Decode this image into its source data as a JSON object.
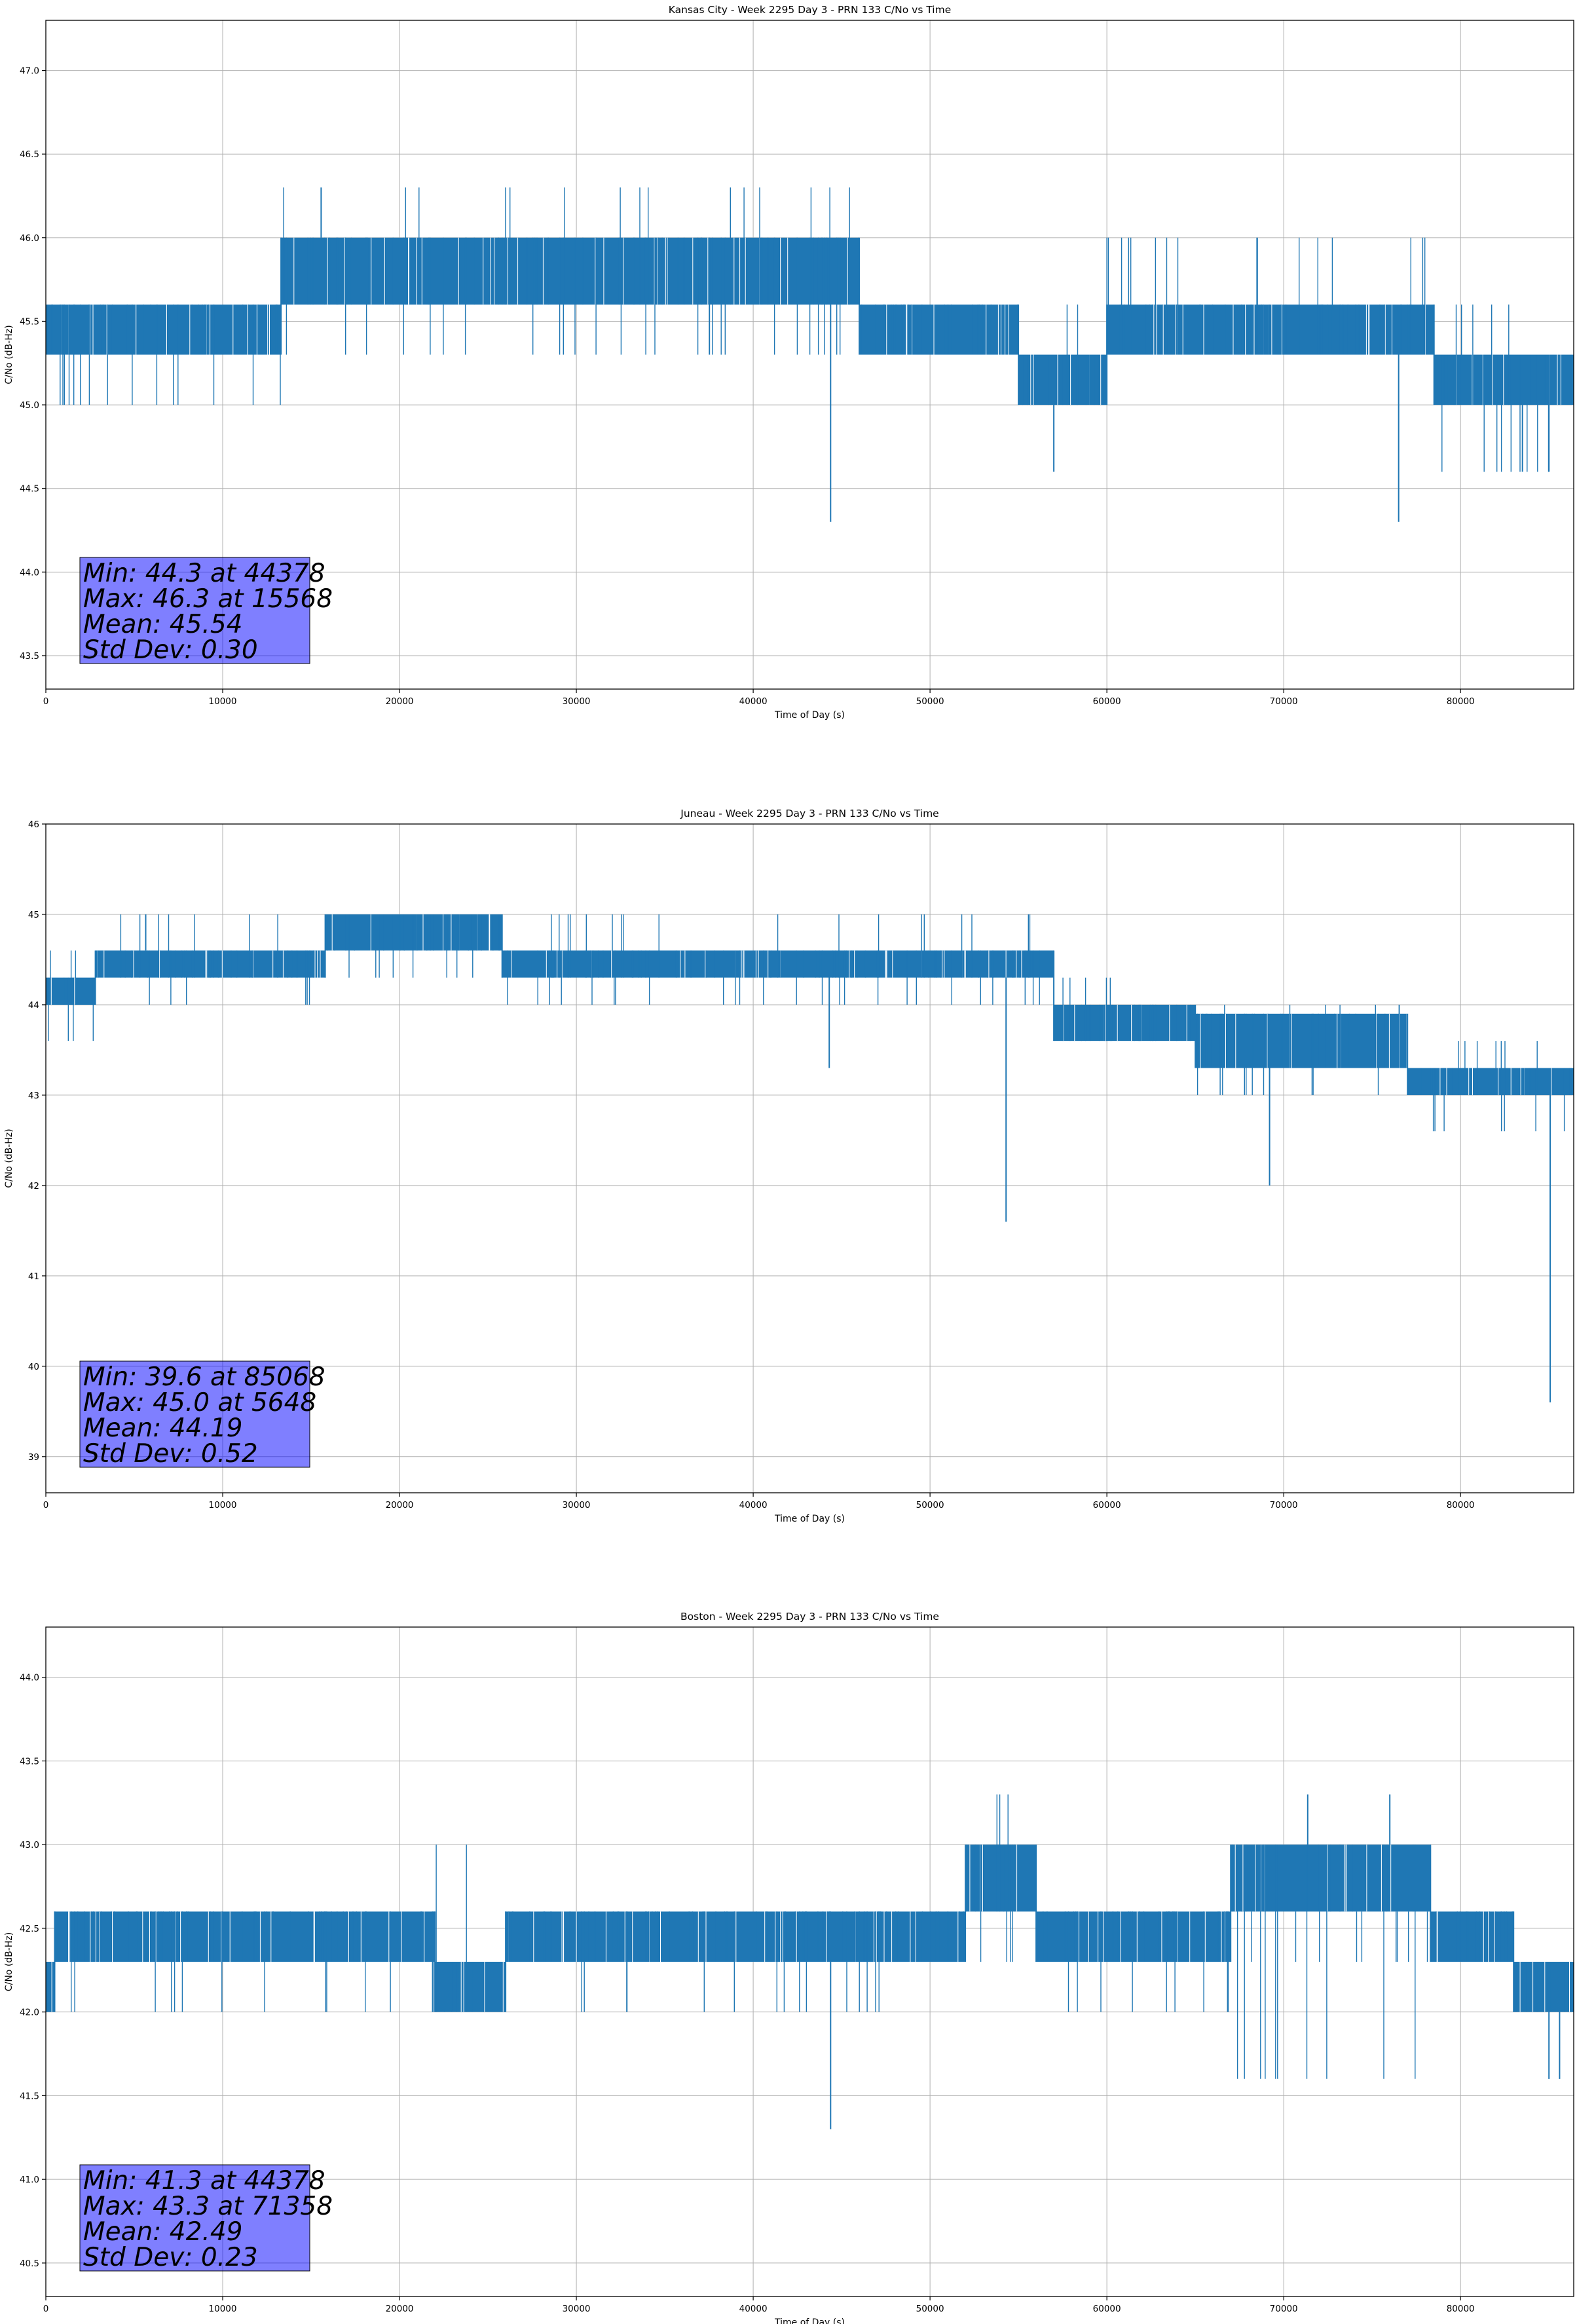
{
  "chart_data": [
    {
      "type": "line",
      "title": "Kansas City - Week 2295 Day 3 - PRN 133 C/No vs Time",
      "xlabel": "Time of Day (s)",
      "ylabel": "C/No (dB-Hz)",
      "xlim": [
        0,
        86400
      ],
      "ylim": [
        43.3,
        47.3
      ],
      "xticks": [
        0,
        10000,
        20000,
        30000,
        40000,
        50000,
        60000,
        70000,
        80000
      ],
      "yticks": [
        "43.5",
        "44.0",
        "44.5",
        "45.0",
        "45.5",
        "46.0",
        "46.5",
        "47.0"
      ],
      "grid": true,
      "color": "#1f77b4",
      "series": [
        {
          "segments": [
            {
              "x": [
                0,
                13300
              ],
              "y": [
                45.3,
                45.6
              ]
            },
            {
              "x": [
                13300,
                46000
              ],
              "y": [
                45.6,
                46.0
              ]
            },
            {
              "x": [
                46000,
                55000
              ],
              "y": [
                45.3,
                45.6
              ]
            },
            {
              "x": [
                55000,
                60000
              ],
              "y": [
                45.0,
                45.3
              ]
            },
            {
              "x": [
                60000,
                78500
              ],
              "y": [
                45.3,
                45.6
              ]
            },
            {
              "x": [
                78500,
                86400
              ],
              "y": [
                45.0,
                45.3
              ]
            }
          ],
          "band_ranges": [
            [
              45.0,
              45.6
            ],
            [
              45.3,
              46.3
            ],
            [
              45.3,
              45.6
            ],
            [
              45.0,
              45.6
            ],
            [
              45.3,
              46.0
            ],
            [
              44.6,
              45.6
            ]
          ],
          "extremes": [
            {
              "x": 44378,
              "y": 44.3
            },
            {
              "x": 15568,
              "y": 46.3
            },
            {
              "x": 57000,
              "y": 44.6
            },
            {
              "x": 76500,
              "y": 44.3
            },
            {
              "x": 83500,
              "y": 44.6
            },
            {
              "x": 85000,
              "y": 44.6
            }
          ]
        }
      ],
      "stats": [
        "Min: 44.3 at 44378",
        "Max: 46.3 at 15568",
        "Mean: 45.54",
        "Std Dev: 0.30"
      ]
    },
    {
      "type": "line",
      "title": "Juneau - Week 2295 Day 3 - PRN 133 C/No vs Time",
      "xlabel": "Time of Day (s)",
      "ylabel": "C/No (dB-Hz)",
      "xlim": [
        0,
        86400
      ],
      "ylim": [
        38.6,
        46.0
      ],
      "xticks": [
        0,
        10000,
        20000,
        30000,
        40000,
        50000,
        60000,
        70000,
        80000
      ],
      "yticks": [
        "39",
        "40",
        "41",
        "42",
        "43",
        "44",
        "45",
        "46"
      ],
      "grid": true,
      "color": "#1f77b4",
      "series": [
        {
          "segments": [
            {
              "x": [
                0,
                2800
              ],
              "y": [
                44.0,
                44.3
              ]
            },
            {
              "x": [
                2800,
                15800
              ],
              "y": [
                44.3,
                44.6
              ]
            },
            {
              "x": [
                15800,
                25800
              ],
              "y": [
                44.6,
                45.0
              ]
            },
            {
              "x": [
                25800,
                57000
              ],
              "y": [
                44.3,
                44.6
              ]
            },
            {
              "x": [
                57000,
                65000
              ],
              "y": [
                43.6,
                44.0
              ]
            },
            {
              "x": [
                65000,
                77000
              ],
              "y": [
                43.3,
                43.9
              ]
            },
            {
              "x": [
                77000,
                86400
              ],
              "y": [
                43.0,
                43.3
              ]
            }
          ],
          "band_ranges": [
            [
              43.6,
              44.6
            ],
            [
              44.0,
              45.0
            ],
            [
              44.3,
              45.0
            ],
            [
              44.0,
              45.0
            ],
            [
              43.6,
              44.3
            ],
            [
              43.0,
              44.0
            ],
            [
              42.6,
              43.6
            ]
          ],
          "extremes": [
            {
              "x": 85068,
              "y": 39.6
            },
            {
              "x": 5648,
              "y": 45.0
            },
            {
              "x": 54300,
              "y": 41.6
            },
            {
              "x": 69200,
              "y": 42.0
            },
            {
              "x": 44300,
              "y": 43.3
            }
          ]
        }
      ],
      "stats": [
        "Min: 39.6 at 85068",
        "Max: 45.0 at 5648",
        "Mean: 44.19",
        "Std Dev: 0.52"
      ]
    },
    {
      "type": "line",
      "title": "Boston - Week 2295 Day 3 - PRN 133 C/No vs Time",
      "xlabel": "Time of Day (s)",
      "ylabel": "C/No (dB-Hz)",
      "xlim": [
        0,
        86400
      ],
      "ylim": [
        40.3,
        44.3
      ],
      "xticks": [
        0,
        10000,
        20000,
        30000,
        40000,
        50000,
        60000,
        70000,
        80000
      ],
      "yticks": [
        "40.5",
        "41.0",
        "41.5",
        "42.0",
        "42.5",
        "43.0",
        "43.5",
        "44.0"
      ],
      "grid": true,
      "color": "#1f77b4",
      "series": [
        {
          "segments": [
            {
              "x": [
                0,
                500
              ],
              "y": [
                42.0,
                42.3
              ]
            },
            {
              "x": [
                500,
                22000
              ],
              "y": [
                42.3,
                42.6
              ]
            },
            {
              "x": [
                22000,
                26000
              ],
              "y": [
                42.0,
                42.3
              ]
            },
            {
              "x": [
                26000,
                52000
              ],
              "y": [
                42.3,
                42.6
              ]
            },
            {
              "x": [
                52000,
                56000
              ],
              "y": [
                42.6,
                43.0
              ]
            },
            {
              "x": [
                56000,
                67000
              ],
              "y": [
                42.3,
                42.6
              ]
            },
            {
              "x": [
                67000,
                78300
              ],
              "y": [
                42.6,
                43.0
              ]
            },
            {
              "x": [
                78300,
                83000
              ],
              "y": [
                42.3,
                42.6
              ]
            },
            {
              "x": [
                83000,
                86400
              ],
              "y": [
                42.0,
                42.3
              ]
            }
          ],
          "band_ranges": [
            [
              42.0,
              43.0
            ],
            [
              42.0,
              42.6
            ],
            [
              42.0,
              43.0
            ],
            [
              42.0,
              42.6
            ],
            [
              42.3,
              43.3
            ],
            [
              42.0,
              42.6
            ],
            [
              41.6,
              42.3
            ]
          ],
          "extremes": [
            {
              "x": 44378,
              "y": 41.3
            },
            {
              "x": 71358,
              "y": 43.3
            },
            {
              "x": 76000,
              "y": 43.3
            },
            {
              "x": 85000,
              "y": 41.6
            },
            {
              "x": 85600,
              "y": 41.6
            }
          ]
        }
      ],
      "stats": [
        "Min: 41.3 at 44378",
        "Max: 43.3 at 71358",
        "Mean: 42.49",
        "Std Dev: 0.23"
      ]
    }
  ]
}
